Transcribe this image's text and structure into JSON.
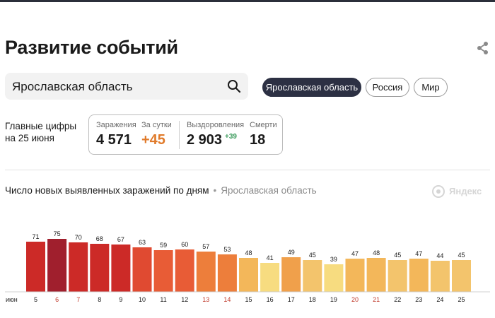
{
  "header": {
    "title": "Развитие событий"
  },
  "search": {
    "value": "Ярославская область"
  },
  "region_chips": [
    {
      "label": "Ярославская область",
      "active": true
    },
    {
      "label": "Россия",
      "active": false
    },
    {
      "label": "Мир",
      "active": false
    }
  ],
  "key_figures": {
    "label_line1": "Главные цифры",
    "label_line2": "на 25 июня",
    "infected_label": "Заражения",
    "infected_value": "4 571",
    "daily_label": "За сутки",
    "daily_value": "+45",
    "recovered_label": "Выздоровления",
    "recovered_value": "2 903",
    "recovered_delta": "+39",
    "deaths_label": "Смерти",
    "deaths_value": "18"
  },
  "chart_header": {
    "title": "Число новых выявленных заражений по дням",
    "separator": "•",
    "region": "Ярославская область"
  },
  "brand": {
    "name": "Яндекс"
  },
  "chart_data": {
    "type": "bar",
    "x_prefix_label": "июн",
    "categories": [
      "5",
      "6",
      "7",
      "8",
      "9",
      "10",
      "11",
      "12",
      "13",
      "14",
      "15",
      "16",
      "17",
      "18",
      "19",
      "20",
      "21",
      "22",
      "23",
      "24",
      "25"
    ],
    "values": [
      71,
      75,
      70,
      68,
      67,
      63,
      59,
      60,
      57,
      53,
      48,
      41,
      49,
      45,
      39,
      47,
      48,
      45,
      47,
      44,
      45
    ],
    "colors": [
      "#cc2a27",
      "#a01f2d",
      "#cc2a27",
      "#cc2a27",
      "#cc2a27",
      "#e04a31",
      "#e85c36",
      "#e85c36",
      "#ed7e3b",
      "#ed7e3b",
      "#f3b75a",
      "#f7dc80",
      "#f0a04b",
      "#f3c46c",
      "#f7dc80",
      "#f3b75a",
      "#f3b75a",
      "#f3c46c",
      "#f3b75a",
      "#f3c46c",
      "#f3c46c"
    ],
    "weekend_categories": [
      "6",
      "7",
      "13",
      "14",
      "20",
      "21"
    ],
    "weekend_label_color": "#c0392b",
    "ylim": [
      0,
      80
    ]
  }
}
